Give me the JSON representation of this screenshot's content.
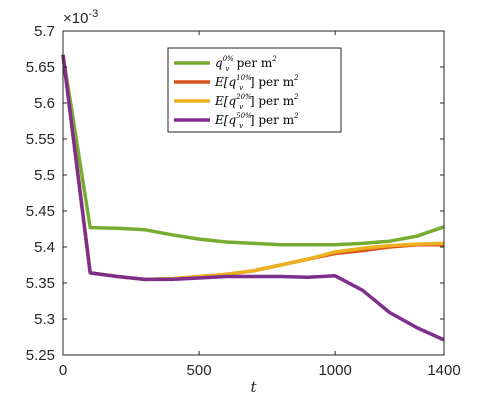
{
  "chart_data": {
    "type": "line",
    "xlabel": "t",
    "ylabel": "",
    "xlim": [
      0,
      1400
    ],
    "ylim": [
      5.25,
      5.7
    ],
    "y_multiplier": "×10-3",
    "y_multiplier_parts": {
      "base": "×10",
      "exp": "-3"
    },
    "x_ticks": [
      0,
      500,
      1000,
      1400
    ],
    "x_tick_labels": [
      "0",
      "500",
      "1000",
      "1400"
    ],
    "y_ticks": [
      5.25,
      5.3,
      5.35,
      5.4,
      5.45,
      5.5,
      5.55,
      5.6,
      5.65,
      5.7
    ],
    "y_tick_labels": [
      "5.25",
      "5.3",
      "5.35",
      "5.4",
      "5.45",
      "5.5",
      "5.55",
      "5.6",
      "5.65",
      "5.7"
    ],
    "grid": false,
    "legend_position": "top-center",
    "x": [
      0,
      100,
      200,
      300,
      400,
      500,
      600,
      700,
      800,
      900,
      1000,
      1100,
      1200,
      1300,
      1400
    ],
    "series": [
      {
        "name": "q_v^{0%} per m^2",
        "label_parts": {
          "pre": "",
          "var": "q",
          "sub": "v",
          "sup": "0%",
          "post": " per m",
          "post_sup": "2"
        },
        "color": "#77ac30",
        "values": [
          5.667,
          5.427,
          5.426,
          5.424,
          5.417,
          5.411,
          5.407,
          5.405,
          5.403,
          5.403,
          5.403,
          5.405,
          5.408,
          5.415,
          5.428
        ]
      },
      {
        "name": "E[q_v^{10%}] per m^2",
        "label_parts": {
          "pre": "E[",
          "var": "q",
          "sub": "v",
          "sup": "10%",
          "post": "] per m",
          "post_sup": "2"
        },
        "color": "#d95319",
        "values": [
          5.667,
          5.364,
          5.359,
          5.355,
          5.356,
          5.359,
          5.362,
          5.367,
          5.375,
          5.383,
          5.391,
          5.395,
          5.4,
          5.403,
          5.403
        ]
      },
      {
        "name": "E[q_v^{20%}] per m^2",
        "label_parts": {
          "pre": "E[",
          "var": "q",
          "sub": "v",
          "sup": "20%",
          "post": "] per m",
          "post_sup": "2"
        },
        "color": "#edb120",
        "values": [
          5.667,
          5.364,
          5.359,
          5.355,
          5.356,
          5.359,
          5.362,
          5.367,
          5.375,
          5.383,
          5.393,
          5.398,
          5.402,
          5.404,
          5.405
        ]
      },
      {
        "name": "E[q_v^{50%}] per m^2",
        "label_parts": {
          "pre": "E[",
          "var": "q",
          "sub": "v",
          "sup": "50%",
          "post": "] per m",
          "post_sup": "2"
        },
        "color": "#7e2f8e",
        "values": [
          5.667,
          5.364,
          5.359,
          5.355,
          5.355,
          5.357,
          5.359,
          5.359,
          5.359,
          5.358,
          5.36,
          5.34,
          5.309,
          5.288,
          5.271
        ]
      }
    ]
  }
}
